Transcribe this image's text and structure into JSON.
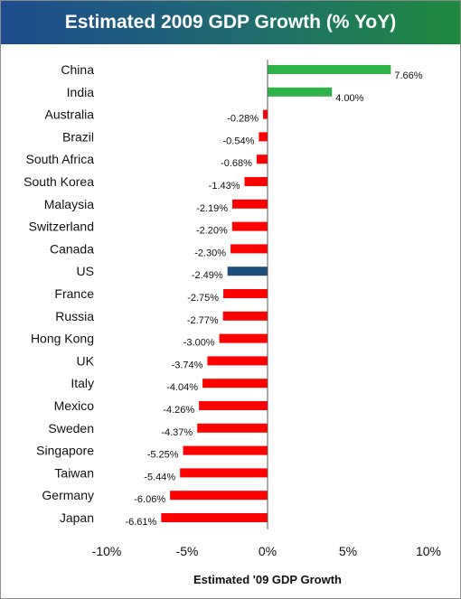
{
  "chart_data": {
    "type": "bar",
    "orientation": "horizontal",
    "title": "Estimated 2009 GDP Growth (% YoY)",
    "xlabel": "Estimated '09 GDP Growth",
    "ylabel": "",
    "xlim": [
      -10,
      10
    ],
    "x_ticks": [
      -10,
      -5,
      0,
      5,
      10
    ],
    "x_tick_labels": [
      "-10%",
      "-5%",
      "0%",
      "5%",
      "10%"
    ],
    "grid": false,
    "legend": "none",
    "categories": [
      "China",
      "India",
      "Australia",
      "Brazil",
      "South Africa",
      "South Korea",
      "Malaysia",
      "Switzerland",
      "Canada",
      "US",
      "France",
      "Russia",
      "Hong Kong",
      "UK",
      "Italy",
      "Mexico",
      "Sweden",
      "Singapore",
      "Taiwan",
      "Germany",
      "Japan"
    ],
    "values": [
      7.66,
      4.0,
      -0.28,
      -0.54,
      -0.68,
      -1.43,
      -2.19,
      -2.2,
      -2.3,
      -2.49,
      -2.75,
      -2.77,
      -3.0,
      -3.74,
      -4.04,
      -4.26,
      -4.37,
      -5.25,
      -5.44,
      -6.06,
      -6.61
    ],
    "value_labels": [
      "7.66%",
      "4.00%",
      "-0.28%",
      "-0.54%",
      "-0.68%",
      "-1.43%",
      "-2.19%",
      "-2.20%",
      "-2.30%",
      "-2.49%",
      "-2.75%",
      "-2.77%",
      "-3.00%",
      "-3.74%",
      "-4.04%",
      "-4.26%",
      "-4.37%",
      "-5.25%",
      "-5.44%",
      "-6.06%",
      "-6.61%"
    ],
    "highlight_category": "US",
    "colors": {
      "positive": "#2db34a",
      "negative": "#ff0000",
      "highlight": "#1f4e79",
      "title_gradient_start": "#1f4b8e",
      "title_gradient_end": "#1f8a3e"
    }
  }
}
